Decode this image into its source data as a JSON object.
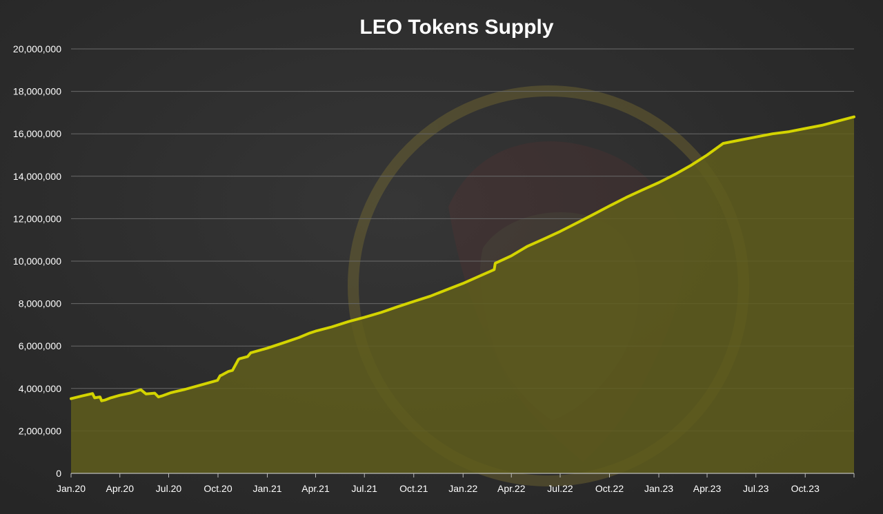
{
  "chart_data": {
    "type": "area",
    "title": "LEO Tokens Supply",
    "xlabel": "",
    "ylabel": "",
    "ylim": [
      0,
      20000000
    ],
    "xlim": [
      "2020-01-01",
      "2023-12-31"
    ],
    "y_ticks": [
      0,
      2000000,
      4000000,
      6000000,
      8000000,
      10000000,
      12000000,
      14000000,
      16000000,
      18000000,
      20000000
    ],
    "y_tick_labels": [
      "0",
      "2,000,000",
      "4,000,000",
      "6,000,000",
      "8,000,000",
      "10,000,000",
      "12,000,000",
      "14,000,000",
      "16,000,000",
      "18,000,000",
      "20,000,000"
    ],
    "x_ticks": [
      "2020-01-01",
      "2020-04-01",
      "2020-07-01",
      "2020-10-01",
      "2021-01-01",
      "2021-04-01",
      "2021-07-01",
      "2021-10-01",
      "2022-01-01",
      "2022-04-01",
      "2022-07-01",
      "2022-10-01",
      "2023-01-01",
      "2023-04-01",
      "2023-07-01",
      "2023-10-01"
    ],
    "x_tick_labels": [
      "Jan.20",
      "Apr.20",
      "Jul.20",
      "Oct.20",
      "Jan.21",
      "Apr.21",
      "Jul.21",
      "Oct.21",
      "Jan.22",
      "Apr.22",
      "Jul.22",
      "Oct.22",
      "Jan.23",
      "Apr.23",
      "Jul.23",
      "Oct.23"
    ],
    "grid": true,
    "legend": "none",
    "colors": {
      "line": "#d4d400",
      "fill": "#5f5d1c",
      "grid": "#6a6a6a",
      "axis": "#bdbdbd",
      "text": "#ffffff"
    },
    "series": [
      {
        "x": [
          "2020-01-01",
          "2020-01-20",
          "2020-02-10",
          "2020-02-14",
          "2020-02-24",
          "2020-02-27",
          "2020-03-05",
          "2020-03-15",
          "2020-04-01",
          "2020-04-20",
          "2020-05-10",
          "2020-05-20",
          "2020-06-05",
          "2020-06-12",
          "2020-06-20",
          "2020-07-05",
          "2020-08-01",
          "2020-09-01",
          "2020-09-30",
          "2020-10-05",
          "2020-10-07",
          "2020-10-20",
          "2020-10-28",
          "2020-11-08",
          "2020-11-10",
          "2020-11-25",
          "2020-12-01",
          "2021-01-01",
          "2021-02-01",
          "2021-03-01",
          "2021-03-20",
          "2021-04-01",
          "2021-05-01",
          "2021-06-01",
          "2021-07-01",
          "2021-08-01",
          "2021-09-01",
          "2021-10-01",
          "2021-11-01",
          "2021-12-01",
          "2022-01-01",
          "2022-02-01",
          "2022-02-28",
          "2022-03-02",
          "2022-04-01",
          "2022-05-01",
          "2022-06-01",
          "2022-07-01",
          "2022-08-01",
          "2022-09-01",
          "2022-10-01",
          "2022-11-01",
          "2022-12-01",
          "2023-01-01",
          "2023-02-01",
          "2023-03-01",
          "2023-04-01",
          "2023-05-01",
          "2023-06-01",
          "2023-07-01",
          "2023-08-01",
          "2023-09-01",
          "2023-10-01",
          "2023-11-01",
          "2023-12-01",
          "2023-12-31"
        ],
        "values": [
          3520000,
          3640000,
          3760000,
          3560000,
          3600000,
          3420000,
          3460000,
          3560000,
          3680000,
          3780000,
          3940000,
          3740000,
          3780000,
          3600000,
          3660000,
          3800000,
          3960000,
          4180000,
          4380000,
          4600000,
          4620000,
          4800000,
          4850000,
          5360000,
          5400000,
          5500000,
          5680000,
          5900000,
          6160000,
          6400000,
          6600000,
          6700000,
          6900000,
          7150000,
          7350000,
          7580000,
          7850000,
          8100000,
          8350000,
          8650000,
          8950000,
          9300000,
          9600000,
          9900000,
          10250000,
          10700000,
          11050000,
          11400000,
          11800000,
          12200000,
          12600000,
          13000000,
          13350000,
          13700000,
          14100000,
          14500000,
          15000000,
          15550000,
          15700000,
          15850000,
          16000000,
          16100000,
          16250000,
          16400000,
          16600000,
          16800000
        ]
      }
    ]
  }
}
